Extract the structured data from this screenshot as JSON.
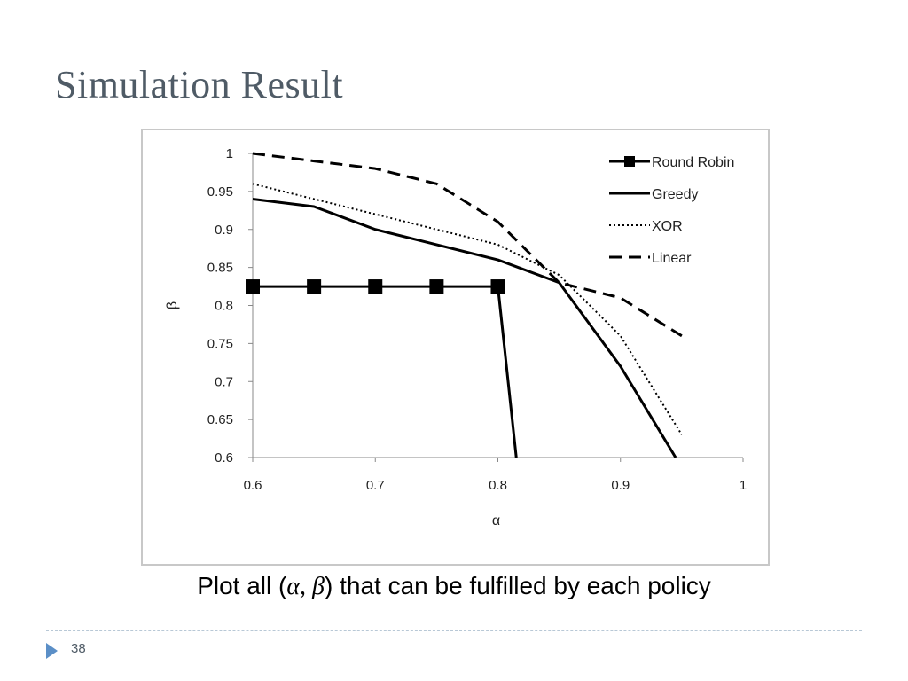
{
  "slide": {
    "title": "Simulation Result",
    "page_number": "38"
  },
  "caption": {
    "prefix": "Plot all (",
    "alpha": "α",
    "comma": ", ",
    "beta": "β",
    "suffix": ") that can be fulfilled by each policy"
  },
  "chart_data": {
    "type": "line",
    "title": "",
    "xlabel": "α",
    "ylabel": "β",
    "xlim": [
      0.6,
      1
    ],
    "ylim": [
      0.6,
      1
    ],
    "xticks": [
      "0.6",
      "0.7",
      "0.8",
      "0.9",
      "1"
    ],
    "yticks": [
      "0.6",
      "0.65",
      "0.7",
      "0.75",
      "0.8",
      "0.85",
      "0.9",
      "0.95",
      "1"
    ],
    "grid": false,
    "legend_position": "top-right",
    "series": [
      {
        "name": "Round Robin",
        "style": "solid-square-markers",
        "x": [
          0.6,
          0.65,
          0.7,
          0.75,
          0.8,
          0.815
        ],
        "y": [
          0.825,
          0.825,
          0.825,
          0.825,
          0.825,
          0.6
        ],
        "markers": [
          true,
          true,
          true,
          true,
          true,
          false
        ]
      },
      {
        "name": "Greedy",
        "style": "solid",
        "x": [
          0.6,
          0.65,
          0.7,
          0.75,
          0.8,
          0.85,
          0.9,
          0.945
        ],
        "y": [
          0.94,
          0.93,
          0.9,
          0.88,
          0.86,
          0.83,
          0.72,
          0.6
        ]
      },
      {
        "name": "XOR",
        "style": "dotted",
        "x": [
          0.6,
          0.65,
          0.7,
          0.75,
          0.8,
          0.85,
          0.9,
          0.95
        ],
        "y": [
          0.96,
          0.94,
          0.92,
          0.9,
          0.88,
          0.84,
          0.76,
          0.63
        ]
      },
      {
        "name": "Linear",
        "style": "dashed",
        "x": [
          0.6,
          0.65,
          0.7,
          0.75,
          0.8,
          0.85,
          0.9,
          0.95
        ],
        "y": [
          1.0,
          0.99,
          0.98,
          0.96,
          0.91,
          0.83,
          0.81,
          0.76
        ]
      }
    ]
  }
}
